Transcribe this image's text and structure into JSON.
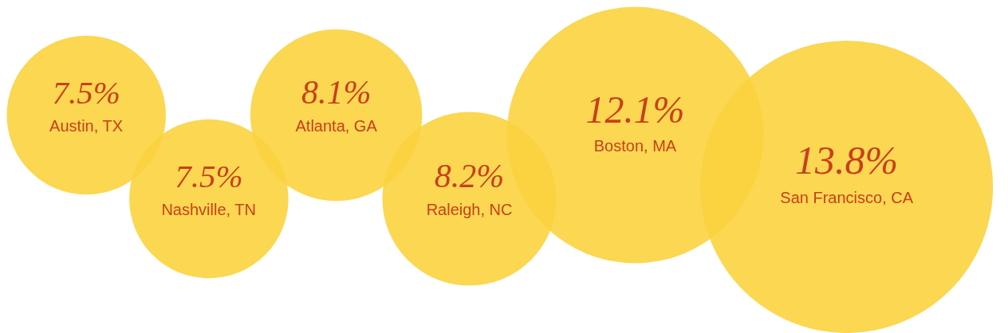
{
  "chart_data": {
    "type": "other",
    "categories": [
      "Austin, TX",
      "Nashville, TN",
      "Atlanta, GA",
      "Raleigh, NC",
      "Boston, MA",
      "San Francisco, CA"
    ],
    "values": [
      7.5,
      7.5,
      8.1,
      8.2,
      12.1,
      13.8
    ],
    "value_labels": [
      "7.5%",
      "7.5%",
      "8.1%",
      "8.2%",
      "12.1%",
      "13.8%"
    ],
    "colors": [
      "#fbd33f",
      "#fbd33f",
      "#fbd33f",
      "#fbd33f",
      "#fbd33f",
      "#fbd33f"
    ]
  }
}
